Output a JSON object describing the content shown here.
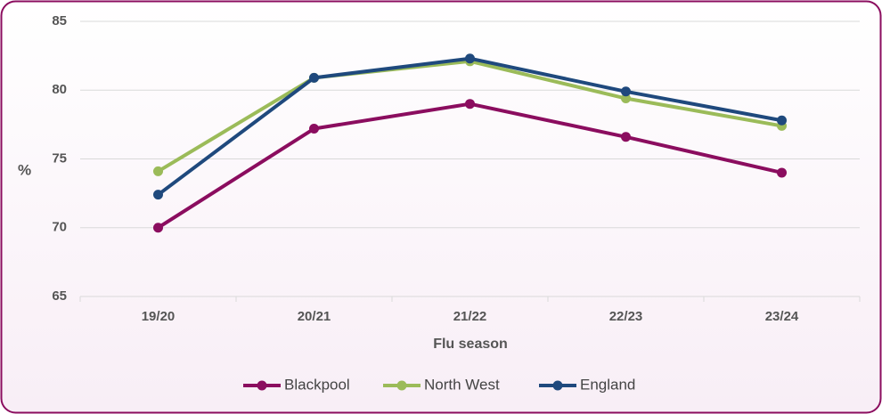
{
  "chart_data": {
    "type": "line",
    "x_label": "Flu season",
    "y_label": "%",
    "categories": [
      "19/20",
      "20/21",
      "21/22",
      "22/23",
      "23/24"
    ],
    "series": [
      {
        "name": "Blackpool",
        "color": "#8b0d5f",
        "values": [
          70.0,
          77.2,
          79.0,
          76.6,
          74.0
        ]
      },
      {
        "name": "North West",
        "color": "#9bbb59",
        "values": [
          74.1,
          80.9,
          82.1,
          79.4,
          77.4
        ]
      },
      {
        "name": "England",
        "color": "#1f497d",
        "values": [
          72.4,
          80.9,
          82.3,
          79.9,
          77.8
        ]
      }
    ],
    "ylim": [
      65,
      85
    ],
    "yticks": [
      65,
      70,
      75,
      80,
      85
    ],
    "grid": true,
    "legend": "bottom"
  }
}
